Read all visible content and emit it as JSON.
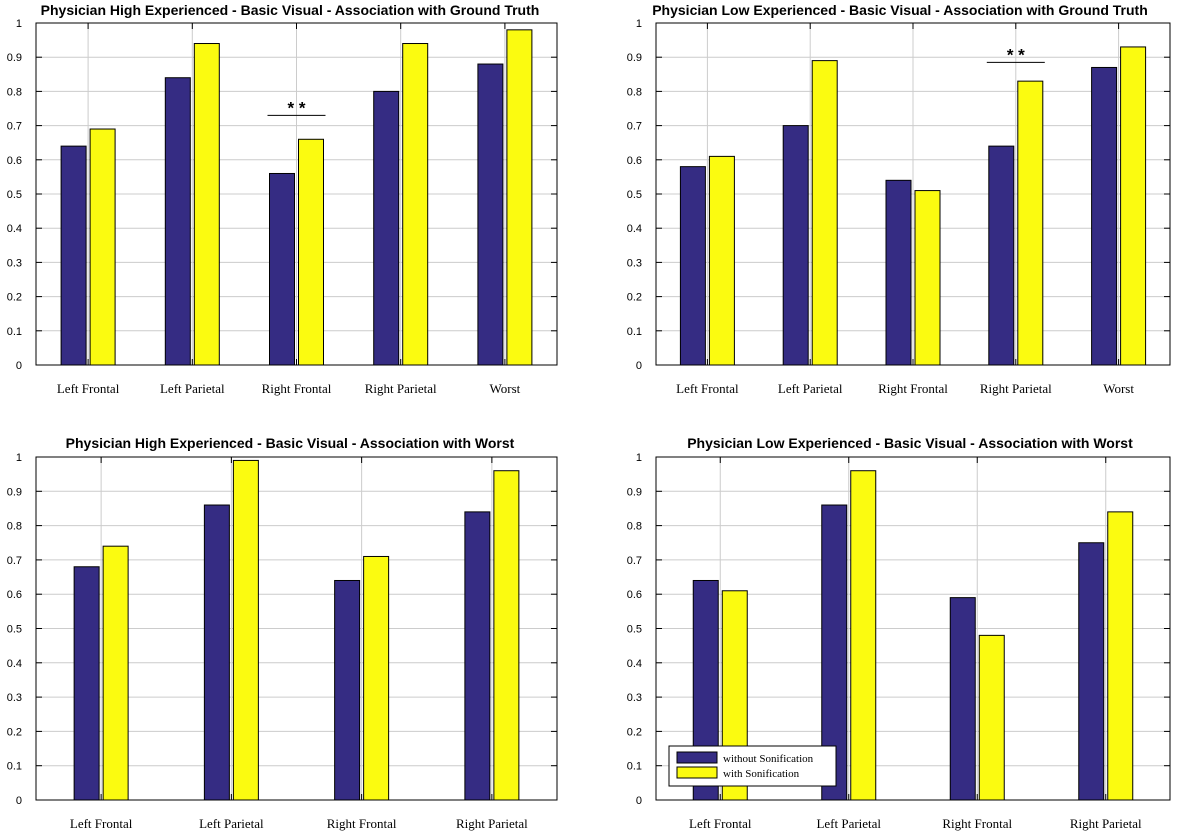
{
  "colors": {
    "without": "#352c83",
    "with": "#fbfb10",
    "grid": "#cccccc",
    "axis": "#000000"
  },
  "chart_data": [
    {
      "type": "bar",
      "title": "Physician High Experienced - Basic Visual - Association with Ground Truth",
      "categories": [
        "Left Frontal",
        "Left Parietal",
        "Right Frontal",
        "Right Parietal",
        "Worst"
      ],
      "series": [
        {
          "name": "without Sonification",
          "values": [
            0.64,
            0.84,
            0.56,
            0.8,
            0.88
          ]
        },
        {
          "name": "with Sonification",
          "values": [
            0.69,
            0.94,
            0.66,
            0.94,
            0.98
          ]
        }
      ],
      "ylim": [
        0,
        1
      ],
      "yticks": [
        "0",
        "0.1",
        "0.2",
        "0.3",
        "0.4",
        "0.5",
        "0.6",
        "0.7",
        "0.8",
        "0.9",
        "1"
      ],
      "grid": true,
      "significance": [
        {
          "category_index": 2,
          "label": "* *",
          "y": 0.73
        }
      ]
    },
    {
      "type": "bar",
      "title": "Physician Low Experienced - Basic Visual - Association with Ground Truth",
      "categories": [
        "Left Frontal",
        "Left Parietal",
        "Right Frontal",
        "Right Parietal",
        "Worst"
      ],
      "series": [
        {
          "name": "without Sonification",
          "values": [
            0.58,
            0.7,
            0.54,
            0.64,
            0.87
          ]
        },
        {
          "name": "with Sonification",
          "values": [
            0.61,
            0.89,
            0.51,
            0.83,
            0.93
          ]
        }
      ],
      "ylim": [
        0,
        1
      ],
      "yticks": [
        "0",
        "0.1",
        "0.2",
        "0.3",
        "0.4",
        "0.5",
        "0.6",
        "0.7",
        "0.8",
        "0.9",
        "1"
      ],
      "grid": true,
      "significance": [
        {
          "category_index": 3,
          "label": "* *",
          "y": 0.885
        }
      ]
    },
    {
      "type": "bar",
      "title": "Physician High Experienced - Basic Visual - Association with Worst",
      "categories": [
        "Left Frontal",
        "Left Parietal",
        "Right Frontal",
        "Right Parietal"
      ],
      "series": [
        {
          "name": "without Sonification",
          "values": [
            0.68,
            0.86,
            0.64,
            0.84
          ]
        },
        {
          "name": "with Sonification",
          "values": [
            0.74,
            0.99,
            0.71,
            0.96
          ]
        }
      ],
      "ylim": [
        0,
        1
      ],
      "yticks": [
        "0",
        "0.1",
        "0.2",
        "0.3",
        "0.4",
        "0.5",
        "0.6",
        "0.7",
        "0.8",
        "0.9",
        "1"
      ],
      "grid": true,
      "significance": []
    },
    {
      "type": "bar",
      "title": "Physician Low Experienced - Basic Visual - Association with Worst",
      "categories": [
        "Left Frontal",
        "Left Parietal",
        "Right Frontal",
        "Right Parietal"
      ],
      "series": [
        {
          "name": "without Sonification",
          "values": [
            0.64,
            0.86,
            0.59,
            0.75
          ]
        },
        {
          "name": "with Sonification",
          "values": [
            0.61,
            0.96,
            0.48,
            0.84
          ]
        }
      ],
      "ylim": [
        0,
        1
      ],
      "yticks": [
        "0",
        "0.1",
        "0.2",
        "0.3",
        "0.4",
        "0.5",
        "0.6",
        "0.7",
        "0.8",
        "0.9",
        "1"
      ],
      "grid": true,
      "significance": [],
      "legend": {
        "position": "bottom-left",
        "entries": [
          "without Sonification",
          "with Sonification"
        ]
      }
    }
  ]
}
